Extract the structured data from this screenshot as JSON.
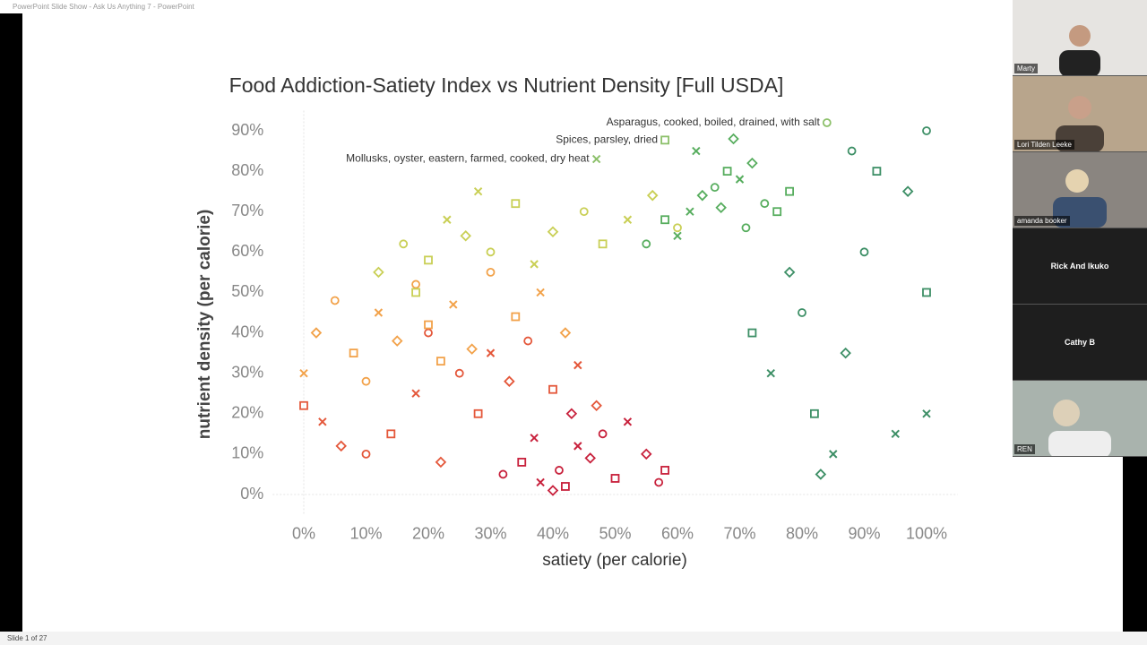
{
  "window_title": "PowerPoint Slide Show  -  Ask Us Anything 7  -  PowerPoint",
  "status_bar": {
    "slide": "Slide 1 of 27"
  },
  "participants": [
    "Marty",
    "Lori Tilden Leeke",
    "amanda booker",
    "Rick And Ikuko",
    "Cathy B",
    "REN"
  ],
  "chart_data": {
    "type": "scatter",
    "title": "Food Addiction-Satiety Index vs Nutrient Density [Full USDA]",
    "x_label": "satiety (per calorie)",
    "y_label": "nutrient density (per calorie)",
    "xlim": [
      -5,
      105
    ],
    "ylim": [
      -5,
      95
    ],
    "xticks": [
      {
        "value": 0,
        "label": "0%"
      },
      {
        "value": 10,
        "label": "10%"
      },
      {
        "value": 20,
        "label": "20%"
      },
      {
        "value": 30,
        "label": "30%"
      },
      {
        "value": 40,
        "label": "40%"
      },
      {
        "value": 50,
        "label": "50%"
      },
      {
        "value": 60,
        "label": "60%"
      },
      {
        "value": 70,
        "label": "70%"
      },
      {
        "value": 80,
        "label": "80%"
      },
      {
        "value": 90,
        "label": "90%"
      },
      {
        "value": 100,
        "label": "100%"
      }
    ],
    "yticks": [
      {
        "value": 0,
        "label": "0%"
      },
      {
        "value": 10,
        "label": "10%"
      },
      {
        "value": 20,
        "label": "20%"
      },
      {
        "value": 30,
        "label": "30%"
      },
      {
        "value": 40,
        "label": "40%"
      },
      {
        "value": 50,
        "label": "50%"
      },
      {
        "value": 60,
        "label": "60%"
      },
      {
        "value": 70,
        "label": "70%"
      },
      {
        "value": 80,
        "label": "80%"
      },
      {
        "value": 90,
        "label": "90%"
      }
    ],
    "series": [
      {
        "color": "#c8213c",
        "x": [
          32,
          35,
          38,
          40,
          41,
          42,
          44,
          46,
          48,
          50,
          52,
          55,
          57,
          58,
          37,
          43
        ],
        "values": [
          5,
          8,
          3,
          1,
          6,
          2,
          12,
          9,
          15,
          4,
          18,
          10,
          3,
          6,
          14,
          20
        ]
      },
      {
        "color": "#e4573a",
        "x": [
          0,
          3,
          6,
          10,
          14,
          18,
          22,
          25,
          28,
          30,
          33,
          36,
          40,
          44,
          47,
          20
        ],
        "values": [
          22,
          18,
          12,
          10,
          15,
          25,
          8,
          30,
          20,
          35,
          28,
          38,
          26,
          32,
          22,
          40
        ]
      },
      {
        "color": "#f2a24a",
        "x": [
          0,
          2,
          5,
          8,
          12,
          15,
          18,
          20,
          24,
          27,
          30,
          34,
          38,
          42,
          10,
          22
        ],
        "values": [
          30,
          40,
          48,
          35,
          45,
          38,
          52,
          42,
          47,
          36,
          55,
          44,
          50,
          40,
          28,
          33
        ]
      },
      {
        "color": "#c9cf55",
        "x": [
          12,
          16,
          20,
          23,
          26,
          30,
          34,
          37,
          40,
          45,
          48,
          52,
          56,
          60,
          18,
          28
        ],
        "values": [
          55,
          62,
          58,
          68,
          64,
          60,
          72,
          57,
          65,
          70,
          62,
          68,
          74,
          66,
          50,
          75
        ]
      },
      {
        "color": "#57ad5e",
        "x": [
          55,
          58,
          62,
          64,
          66,
          68,
          70,
          72,
          74,
          76,
          60,
          67,
          71,
          78,
          63,
          69
        ],
        "values": [
          62,
          68,
          70,
          74,
          76,
          80,
          78,
          82,
          72,
          70,
          64,
          71,
          66,
          75,
          85,
          88
        ]
      },
      {
        "color": "#3d8f66",
        "x": [
          72,
          75,
          78,
          80,
          82,
          85,
          87,
          90,
          92,
          95,
          97,
          100,
          100,
          100,
          83,
          88
        ],
        "values": [
          40,
          30,
          55,
          45,
          20,
          10,
          35,
          60,
          80,
          15,
          75,
          90,
          50,
          20,
          5,
          85
        ]
      }
    ],
    "annotations": [
      {
        "text": "Asparagus, cooked, boiled, drained, with salt",
        "x": 84,
        "y": 92
      },
      {
        "text": "Spices, parsley, dried",
        "x": 58,
        "y": 87.7
      },
      {
        "text": "Mollusks, oyster, eastern, farmed, cooked, dry heat",
        "x": 47,
        "y": 83
      }
    ]
  }
}
